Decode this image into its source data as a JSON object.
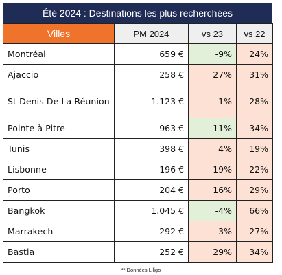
{
  "title": "Été 2024 : Destinations les plus recherchées",
  "headers": {
    "city": "Villes",
    "pm": "PM 2024",
    "vs23": "vs 23",
    "vs22": "vs 22"
  },
  "rows": [
    {
      "city": "Montréal",
      "pm": "659 €",
      "vs23": "-9%",
      "vs22": "24%",
      "vs23_negative": true
    },
    {
      "city": "Ajaccio",
      "pm": "258 €",
      "vs23": "27%",
      "vs22": "31%",
      "vs23_negative": false
    },
    {
      "city": "St Denis De La Réunion",
      "pm": "1.123 €",
      "vs23": "1%",
      "vs22": "28%",
      "vs23_negative": false
    },
    {
      "city": "Pointe à Pitre",
      "pm": "963 €",
      "vs23": "-11%",
      "vs22": "34%",
      "vs23_negative": true
    },
    {
      "city": "Tunis",
      "pm": "398 €",
      "vs23": "4%",
      "vs22": "19%",
      "vs23_negative": false
    },
    {
      "city": "Lisbonne",
      "pm": "196 €",
      "vs23": "19%",
      "vs22": "22%",
      "vs23_negative": false
    },
    {
      "city": "Porto",
      "pm": "204 €",
      "vs23": "16%",
      "vs22": "29%",
      "vs23_negative": false
    },
    {
      "city": "Bangkok",
      "pm": "1.045 €",
      "vs23": "-4%",
      "vs22": "66%",
      "vs23_negative": true
    },
    {
      "city": "Marrakech",
      "pm": "292 €",
      "vs23": "3%",
      "vs22": "27%",
      "vs23_negative": false
    },
    {
      "city": "Bastia",
      "pm": "252 €",
      "vs23": "29%",
      "vs22": "34%",
      "vs23_negative": false
    }
  ],
  "footnote": "** Données Liligo",
  "colors": {
    "title_bg": "#1f2c56",
    "header_accent": "#f0732b",
    "positive_bg": "#fce1d4",
    "negative_bg": "#e2efd9"
  }
}
